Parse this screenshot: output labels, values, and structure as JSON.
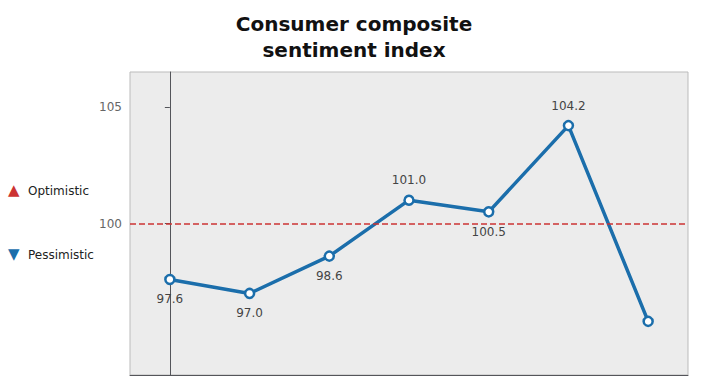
{
  "chart_data": {
    "type": "line",
    "title": "Consumer composite\nsentiment index",
    "x": [
      0,
      1,
      2,
      3,
      4,
      5,
      6
    ],
    "series": [
      {
        "name": "Consumer composite sentiment index",
        "color": "#1b6eab",
        "marker": "circle",
        "values": [
          97.6,
          97.0,
          98.6,
          101.0,
          100.5,
          104.2,
          95.8
        ],
        "value_labels": [
          "97.6",
          "97.0",
          "98.6",
          "101.0",
          "100.5",
          "104.2",
          null
        ]
      }
    ],
    "xlim": [
      -0.5,
      6.5
    ],
    "xticks": [],
    "ylim": [
      93.5,
      106.5
    ],
    "yticks": [
      105,
      100
    ],
    "tick_labels": "y",
    "grid": false,
    "data_labels": true,
    "reference_lines": [
      {
        "y": 100,
        "color": "#cc3333",
        "line_style": "dashed"
      }
    ],
    "annotations": [
      {
        "symbol": "▲",
        "text": "Optimistic",
        "color": "#cc3333"
      },
      {
        "symbol": "▼",
        "text": "Pessimistic",
        "color": "#1b6eab"
      }
    ]
  }
}
